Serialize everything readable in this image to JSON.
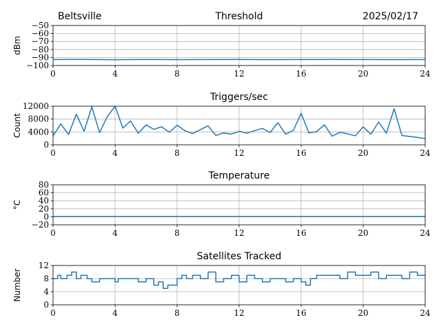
{
  "header": {
    "station": "Beltsville",
    "date": "2025/02/17"
  },
  "colors": {
    "line": "#1f77b4"
  },
  "chart_data": [
    {
      "type": "line",
      "title": "Threshold",
      "ylabel": "dBm",
      "ylim": [
        -100,
        -50
      ],
      "xlim": [
        0,
        24
      ],
      "yticks": [
        -100,
        -90,
        -80,
        -70,
        -60,
        -50
      ],
      "yticklabels": [
        "−100",
        "−90",
        "−80",
        "−70",
        "−60",
        "−50"
      ],
      "xticks": [
        0,
        4,
        8,
        12,
        16,
        20,
        24
      ],
      "xticklabels": [
        "0",
        "4",
        "8",
        "12",
        "16",
        "20",
        "24"
      ],
      "grid": true,
      "series": [
        {
          "x": [
            0,
            2,
            4,
            6,
            8,
            10,
            12,
            14,
            16,
            18,
            20,
            22,
            24
          ],
          "y": [
            -92.6,
            -92.4,
            -92.8,
            -92.5,
            -92.7,
            -92.6,
            -92.5,
            -92.7,
            -92.6,
            -92.5,
            -92.6,
            -92.7,
            -92.6
          ]
        }
      ]
    },
    {
      "type": "line",
      "title": "Triggers/sec",
      "ylabel": "Count",
      "ylim": [
        0,
        12000
      ],
      "xlim": [
        0,
        24
      ],
      "yticks": [
        0,
        4000,
        8000,
        12000
      ],
      "yticklabels": [
        "0",
        "4000",
        "8000",
        "12000"
      ],
      "xticks": [
        0,
        4,
        8,
        12,
        16,
        20,
        24
      ],
      "xticklabels": [
        "0",
        "4",
        "8",
        "12",
        "16",
        "20",
        "24"
      ],
      "grid": true,
      "series": [
        {
          "x": [
            0,
            0.5,
            1.0,
            1.5,
            2.0,
            2.5,
            3.0,
            3.5,
            4.0,
            4.5,
            5.0,
            5.5,
            6.0,
            6.5,
            7.0,
            7.5,
            8.0,
            8.5,
            9.0,
            9.5,
            10.0,
            10.5,
            11.0,
            11.5,
            12.0,
            12.5,
            13.0,
            13.5,
            14.0,
            14.5,
            15.0,
            15.5,
            16.0,
            16.5,
            17.0,
            17.5,
            18.0,
            18.5,
            19.0,
            19.5,
            20.0,
            20.5,
            21.0,
            21.5,
            22.0,
            22.5,
            23.0,
            23.5,
            24.0
          ],
          "y": [
            2800,
            6500,
            3200,
            9500,
            4200,
            11800,
            3800,
            8800,
            12000,
            5200,
            7400,
            3600,
            6200,
            4800,
            5600,
            3900,
            6100,
            4400,
            3500,
            4700,
            5900,
            2900,
            3700,
            3300,
            4200,
            3600,
            4400,
            5100,
            3800,
            6900,
            3300,
            4500,
            9800,
            3700,
            4100,
            6200,
            2700,
            3900,
            3400,
            2800,
            5600,
            3300,
            7100,
            3600,
            11200,
            2900,
            2600,
            2300,
            1900
          ]
        }
      ]
    },
    {
      "type": "line",
      "title": "Temperature",
      "ylabel": "°C",
      "ylim": [
        -20,
        80
      ],
      "xlim": [
        0,
        24
      ],
      "yticks": [
        -20,
        0,
        20,
        40,
        60,
        80
      ],
      "yticklabels": [
        "−20",
        "0",
        "20",
        "40",
        "60",
        "80"
      ],
      "xticks": [
        0,
        4,
        8,
        12,
        16,
        20,
        24
      ],
      "xticklabels": [
        "0",
        "4",
        "8",
        "12",
        "16",
        "20",
        "24"
      ],
      "grid": true,
      "series": [
        {
          "x": [
            0,
            4,
            8,
            12,
            16,
            20,
            24
          ],
          "y": [
            1,
            1,
            1,
            1,
            1,
            1,
            1
          ]
        }
      ]
    },
    {
      "type": "line",
      "title": "Satellites Tracked",
      "ylabel": "Number",
      "ylim": [
        0,
        12
      ],
      "xlim": [
        0,
        24
      ],
      "yticks": [
        0,
        4,
        8,
        12
      ],
      "yticklabels": [
        "0",
        "4",
        "8",
        "12"
      ],
      "xticks": [
        0,
        4,
        8,
        12,
        16,
        20,
        24
      ],
      "xticklabels": [
        "0",
        "4",
        "8",
        "12",
        "16",
        "20",
        "24"
      ],
      "grid": true,
      "step": true,
      "series": [
        {
          "x": [
            0,
            0.3,
            0.5,
            0.9,
            1.2,
            1.5,
            1.8,
            2.2,
            2.5,
            3.0,
            3.5,
            4.0,
            4.2,
            4.5,
            5.0,
            5.5,
            6.0,
            6.5,
            6.8,
            7.1,
            7.4,
            8.0,
            8.3,
            8.6,
            9.0,
            9.5,
            10.0,
            10.5,
            11.0,
            11.5,
            12.0,
            12.5,
            13.0,
            13.5,
            14.0,
            14.5,
            15.0,
            15.5,
            16.0,
            16.3,
            16.6,
            17.0,
            17.5,
            18.0,
            18.5,
            19.0,
            19.5,
            20.0,
            20.5,
            21.0,
            21.5,
            22.0,
            22.5,
            23.0,
            23.5,
            24.0
          ],
          "y": [
            8,
            9,
            8,
            9,
            10,
            8,
            9,
            8,
            7,
            8,
            8,
            7,
            8,
            8,
            8,
            7,
            8,
            6,
            7,
            5,
            6,
            8,
            9,
            8,
            9,
            8,
            10,
            7,
            8,
            9,
            7,
            9,
            8,
            7,
            8,
            8,
            7,
            8,
            7,
            6,
            8,
            9,
            9,
            9,
            8,
            10,
            9,
            9,
            10,
            8,
            9,
            9,
            8,
            10,
            9,
            9
          ]
        }
      ]
    }
  ]
}
